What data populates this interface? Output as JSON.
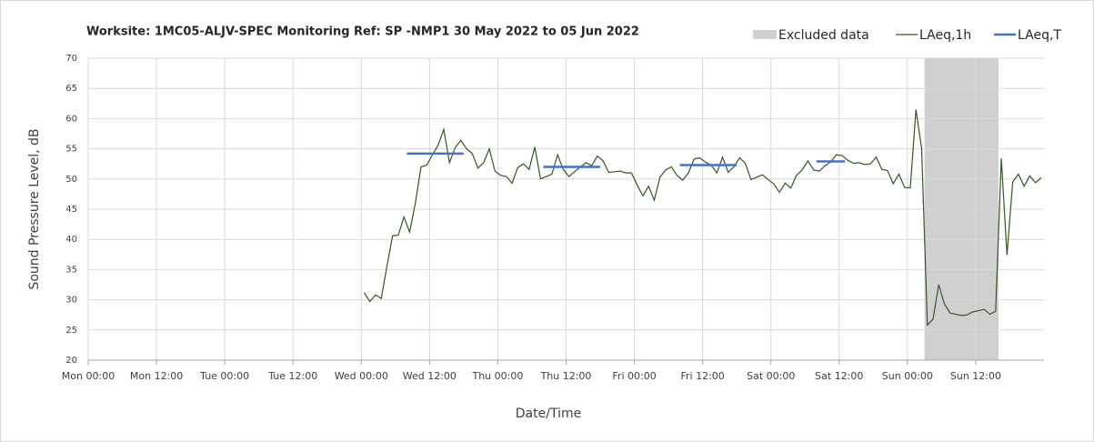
{
  "chart_data": {
    "type": "line",
    "title": "Worksite: 1MC05-ALJV-SPEC Monitoring Ref: SP   -NMP1 30 May 2022 to 05 Jun 2022",
    "xlabel": "Date/Time",
    "ylabel": "Sound Pressure Level, dB",
    "xlim": [
      0,
      168
    ],
    "ylim": [
      20,
      70
    ],
    "xticks": [
      {
        "value": 0,
        "label": "Mon 00:00"
      },
      {
        "value": 12,
        "label": "Mon 12:00"
      },
      {
        "value": 24,
        "label": "Tue 00:00"
      },
      {
        "value": 36,
        "label": "Tue 12:00"
      },
      {
        "value": 48,
        "label": "Wed 00:00"
      },
      {
        "value": 60,
        "label": "Wed 12:00"
      },
      {
        "value": 72,
        "label": "Thu 00:00"
      },
      {
        "value": 84,
        "label": "Thu 12:00"
      },
      {
        "value": 96,
        "label": "Fri 00:00"
      },
      {
        "value": 108,
        "label": "Fri 12:00"
      },
      {
        "value": 120,
        "label": "Sat 00:00"
      },
      {
        "value": 132,
        "label": "Sat 12:00"
      },
      {
        "value": 144,
        "label": "Sun 00:00"
      },
      {
        "value": 156,
        "label": "Sun 12:00"
      }
    ],
    "yticks": [
      20,
      25,
      30,
      35,
      40,
      45,
      50,
      55,
      60,
      65,
      70
    ],
    "grid": true,
    "excluded": {
      "name": "Excluded data",
      "start": 147,
      "end": 160,
      "color": "#d0d0d0"
    },
    "series": [
      {
        "name": "LAeq,1h",
        "color": "#375623",
        "x": [
          48.5,
          49.5,
          50.5,
          51.5,
          52.5,
          53.5,
          54.5,
          55.5,
          56.5,
          57.5,
          58.5,
          59.5,
          60.5,
          61.5,
          62.5,
          63.5,
          64.5,
          65.5,
          66.5,
          67.5,
          68.5,
          69.5,
          70.5,
          71.5,
          72.5,
          73.5,
          74.5,
          75.5,
          76.5,
          77.5,
          78.5,
          79.5,
          80.5,
          81.5,
          82.5,
          83.5,
          84.5,
          85.5,
          86.5,
          87.5,
          88.5,
          89.5,
          90.5,
          91.5,
          92.5,
          93.5,
          94.5,
          95.5,
          96.5,
          97.5,
          98.5,
          99.5,
          100.5,
          101.5,
          102.5,
          103.5,
          104.5,
          105.5,
          106.5,
          107.5,
          108.5,
          109.5,
          110.5,
          111.5,
          112.5,
          113.5,
          114.5,
          115.5,
          116.5,
          117.5,
          118.5,
          119.5,
          120.5,
          121.5,
          122.5,
          123.5,
          124.5,
          125.5,
          126.5,
          127.5,
          128.5,
          129.5,
          130.5,
          131.5,
          132.5,
          133.5,
          134.5,
          135.5,
          136.5,
          137.5,
          138.5,
          139.5,
          140.5,
          141.5,
          142.5,
          143.5,
          144.5,
          145.5,
          146.5,
          147.5,
          148.5,
          149.5,
          150.5,
          151.5,
          152.5,
          153.5,
          154.5,
          155.5,
          156.5,
          157.5,
          158.5,
          159.5,
          160.5,
          161.5,
          162.5,
          163.5,
          164.5,
          165.5,
          166.5,
          167.5
        ],
        "values": [
          31.2,
          29.7,
          30.8,
          30.2,
          35.5,
          40.6,
          40.7,
          43.7,
          41.2,
          46,
          52,
          52.3,
          54,
          55.6,
          58.2,
          52.7,
          55.2,
          56.4,
          55,
          54.2,
          51.8,
          52.7,
          55,
          51.3,
          50.6,
          50.4,
          49.3,
          51.9,
          52.5,
          51.6,
          55.3,
          50,
          50.4,
          50.8,
          54,
          51.6,
          50.4,
          51.2,
          52,
          52.7,
          52.2,
          53.8,
          53,
          51.1,
          51.2,
          51.3,
          51,
          51,
          49,
          47.2,
          48.8,
          46.5,
          50.3,
          51.5,
          52,
          50.6,
          49.8,
          51,
          53.3,
          53.5,
          52.8,
          52.3,
          51,
          53.6,
          51.1,
          52,
          53.5,
          52.6,
          49.9,
          50.3,
          50.7,
          49.9,
          49.2,
          47.8,
          49.3,
          48.5,
          50.6,
          51.5,
          53,
          51.5,
          51.3,
          52.2,
          52.8,
          54,
          53.9,
          53.1,
          52.6,
          52.7,
          52.4,
          52.5,
          53.6,
          51.6,
          51.4,
          49.2,
          50.8,
          48.6,
          48.5,
          61.5,
          55,
          25.8,
          26.8,
          32.5,
          29.3,
          27.8,
          27.6,
          27.4,
          27.5,
          28,
          28.2,
          28.4,
          27.6,
          28.1,
          53.4,
          37.4,
          49.5,
          50.8,
          48.8,
          50.5,
          49.4,
          50.2
        ]
      },
      {
        "name": "LAeq,T",
        "color": "#4472c4",
        "segments": [
          {
            "start": 56,
            "end": 66,
            "value": 54.2
          },
          {
            "start": 80,
            "end": 90,
            "value": 52
          },
          {
            "start": 104,
            "end": 114,
            "value": 52.3
          },
          {
            "start": 128,
            "end": 133,
            "value": 52.9
          }
        ]
      }
    ]
  }
}
